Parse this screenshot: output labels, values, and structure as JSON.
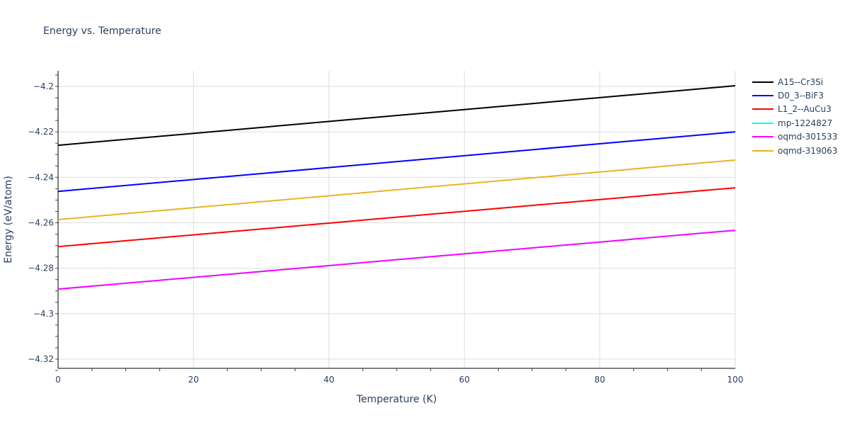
{
  "chart_data": {
    "type": "line",
    "title": "Energy vs. Temperature",
    "xlabel": "Temperature (K)",
    "ylabel": "Energy (eV/atom)",
    "xlim": [
      0,
      100
    ],
    "ylim": [
      -4.3233,
      -4.1933
    ],
    "x_ticks": [
      0,
      20,
      40,
      60,
      80,
      100
    ],
    "x_tick_labels": [
      "0",
      "20",
      "40",
      "60",
      "80",
      "100"
    ],
    "y_ticks": [
      -4.2,
      -4.22,
      -4.24,
      -4.26,
      -4.28,
      -4.3,
      -4.32
    ],
    "y_tick_labels": [
      "−4.2",
      "−4.22",
      "−4.24",
      "−4.26",
      "−4.28",
      "−4.3",
      "−4.32"
    ],
    "grid": true,
    "legend_position": "right",
    "x": [
      0,
      100
    ],
    "series": [
      {
        "name": "A15--Cr3Si",
        "color": "#000000",
        "values": [
          -4.2259,
          -4.1997
        ]
      },
      {
        "name": "D0_3--BiF3",
        "color": "#0000ff",
        "values": [
          -4.2462,
          -4.22
        ]
      },
      {
        "name": "L1_2--AuCu3",
        "color": "#ff0000",
        "values": [
          -4.2705,
          -4.2446
        ]
      },
      {
        "name": "mp-1224827",
        "color": "#00ffff",
        "values": [
          -4.2892,
          -4.2633
        ]
      },
      {
        "name": "oqmd-301533",
        "color": "#ff00ff",
        "values": [
          -4.2892,
          -4.2633
        ]
      },
      {
        "name": "oqmd-319063",
        "color": "#e6b422",
        "values": [
          -4.2586,
          -4.2324
        ]
      }
    ]
  }
}
